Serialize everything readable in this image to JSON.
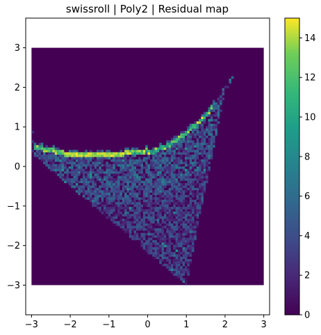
{
  "chart_data": {
    "type": "heatmap",
    "title": "swissroll | Poly2 | Residual map",
    "xlabel": "",
    "ylabel": "",
    "xlim": [
      -3.15,
      3.15
    ],
    "ylim": [
      -3.75,
      3.75
    ],
    "heatmap_extent": {
      "x": [
        -3,
        3
      ],
      "y": [
        -3,
        3
      ]
    },
    "grid_bins": 100,
    "x_ticks": [
      -3,
      -2,
      -1,
      0,
      1,
      2,
      3
    ],
    "x_tick_labels": [
      "−3",
      "−2",
      "−1",
      "0",
      "1",
      "2",
      "3"
    ],
    "y_ticks": [
      -3,
      -2,
      -1,
      0,
      1,
      2,
      3
    ],
    "y_tick_labels": [
      "−3",
      "−2",
      "−1",
      "0",
      "1",
      "2",
      "3"
    ],
    "grid": false,
    "legend": "none",
    "colormap": "viridis",
    "colorbar": {
      "min": 0,
      "max": 15,
      "ticks": [
        0,
        2,
        4,
        6,
        8,
        10,
        12,
        14
      ],
      "tick_labels": [
        "0",
        "2",
        "4",
        "6",
        "8",
        "10",
        "12",
        "14"
      ]
    },
    "background_value": 0,
    "structure": {
      "upper_arc_peak_values": 15,
      "upper_arc_x_range": [
        -2.9,
        2.3
      ],
      "wedge_apex": [
        1.0,
        -3.0
      ],
      "wedge_typical_values": [
        1,
        7
      ]
    }
  }
}
